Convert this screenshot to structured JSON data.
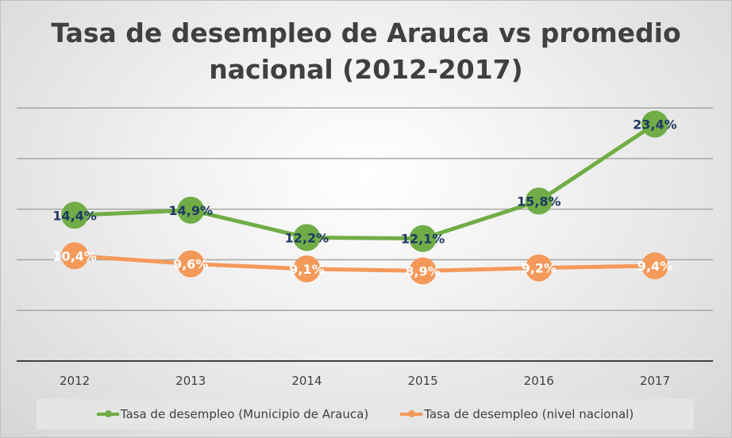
{
  "chart_data": {
    "type": "line",
    "title": "Tasa de desempleo de Arauca vs promedio nacional (2012-2017)",
    "categories": [
      "2012",
      "2013",
      "2014",
      "2015",
      "2016",
      "2017"
    ],
    "ylim": [
      0,
      25
    ],
    "grid": true,
    "legend_position": "bottom",
    "series": [
      {
        "name": "Tasa de desempleo (Municipio de Arauca)",
        "values": [
          14.4,
          14.9,
          12.2,
          12.1,
          15.8,
          23.4
        ],
        "labels": [
          "14,4%",
          "14,9%",
          "12,2%",
          "12,1%",
          "15,8%",
          "23,4%"
        ],
        "color": "#70ad47",
        "label_color": "#1f3864"
      },
      {
        "name": "Tasa de desempleo (nivel nacional)",
        "values": [
          10.4,
          9.6,
          9.1,
          8.9,
          9.2,
          9.4
        ],
        "labels": [
          "10,4%",
          "9,6%",
          "9,1%",
          "8,9%",
          "9,2%",
          "9,4%"
        ],
        "color": "#f4995a",
        "label_color": "#ffffff"
      }
    ]
  }
}
